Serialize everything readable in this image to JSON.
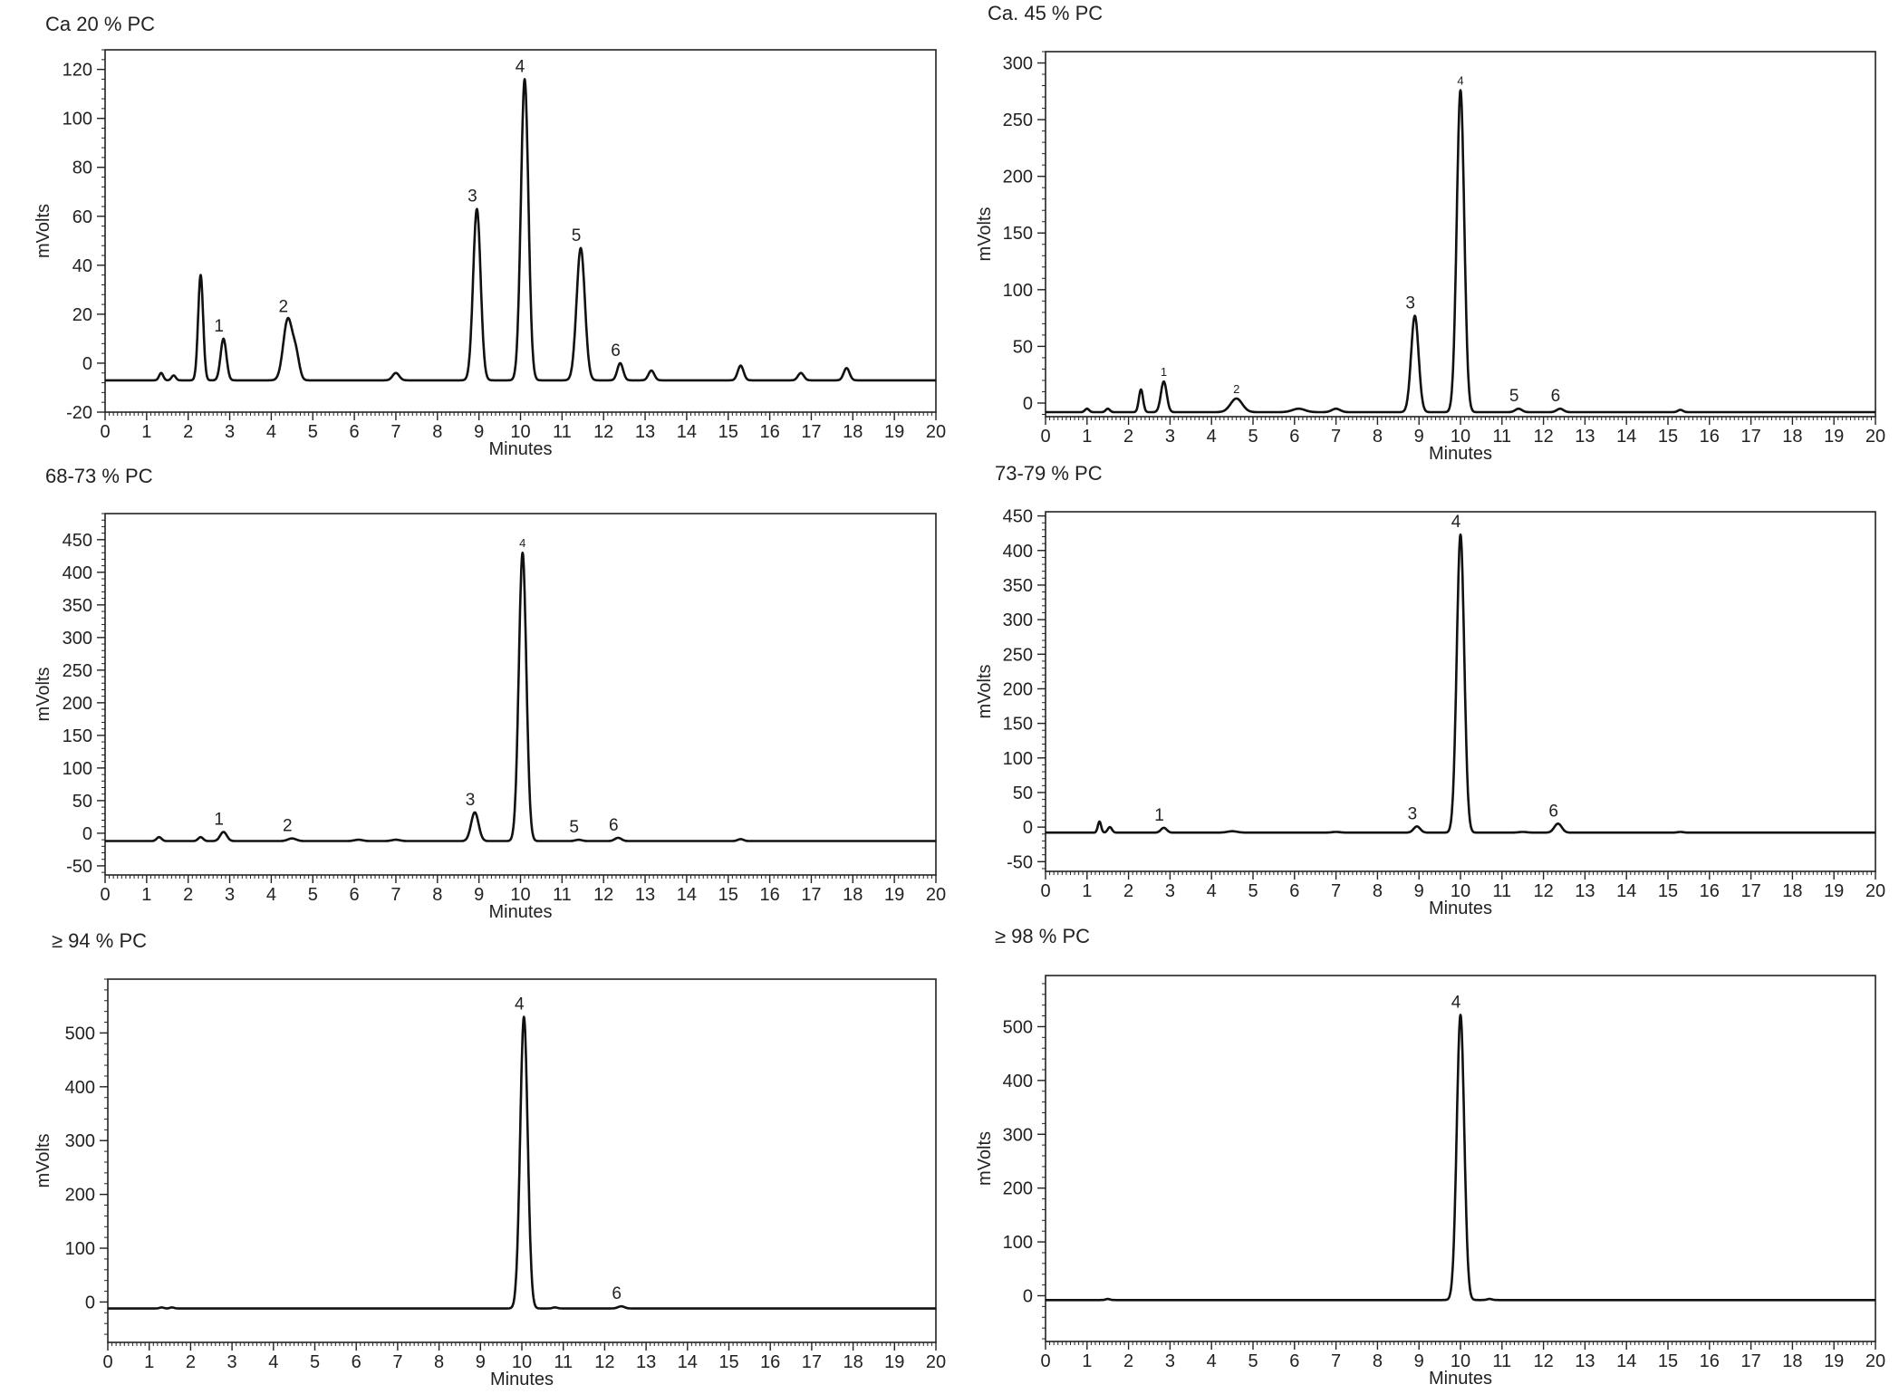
{
  "chart_data": [
    {
      "type": "line",
      "title": "Ca 20 % PC",
      "xlabel": "Minutes",
      "ylabel": "mVolts",
      "xlim": [
        0,
        20
      ],
      "ylim": [
        -20,
        128
      ],
      "baseline": -7,
      "xticks": [
        0,
        1,
        2,
        3,
        4,
        5,
        6,
        7,
        8,
        9,
        10,
        11,
        12,
        13,
        14,
        15,
        16,
        17,
        18,
        19,
        20
      ],
      "yticks": [
        -20,
        0,
        20,
        40,
        60,
        80,
        100,
        120
      ],
      "peaks": [
        {
          "x": 1.35,
          "y": -4,
          "w": 0.05
        },
        {
          "x": 1.65,
          "y": -5,
          "w": 0.05
        },
        {
          "x": 2.3,
          "y": 36,
          "w": 0.06
        },
        {
          "x": 2.85,
          "y": 10,
          "w": 0.07,
          "label": "1"
        },
        {
          "x": 4.4,
          "y": 18,
          "w": 0.11,
          "label": "2"
        },
        {
          "x": 4.6,
          "y": 2,
          "w": 0.08
        },
        {
          "x": 7.0,
          "y": -4,
          "w": 0.08
        },
        {
          "x": 8.95,
          "y": 63,
          "w": 0.09,
          "label": "3"
        },
        {
          "x": 10.1,
          "y": 116,
          "w": 0.09,
          "label": "4"
        },
        {
          "x": 11.45,
          "y": 47,
          "w": 0.1,
          "label": "5"
        },
        {
          "x": 12.4,
          "y": 0,
          "w": 0.07,
          "label": "6"
        },
        {
          "x": 13.15,
          "y": -3,
          "w": 0.07
        },
        {
          "x": 15.3,
          "y": -1,
          "w": 0.07
        },
        {
          "x": 16.75,
          "y": -4,
          "w": 0.07
        },
        {
          "x": 17.85,
          "y": -2,
          "w": 0.07
        }
      ]
    },
    {
      "type": "line",
      "title": "Ca. 45 % PC",
      "xlabel": "Minutes",
      "ylabel": "mVolts",
      "xlim": [
        0,
        20
      ],
      "ylim": [
        -12,
        310
      ],
      "baseline": -8,
      "xticks": [
        0,
        1,
        2,
        3,
        4,
        5,
        6,
        7,
        8,
        9,
        10,
        11,
        12,
        13,
        14,
        15,
        16,
        17,
        18,
        19,
        20
      ],
      "yticks": [
        0,
        50,
        100,
        150,
        200,
        250,
        300
      ],
      "peaks": [
        {
          "x": 1.0,
          "y": -5,
          "w": 0.05
        },
        {
          "x": 1.5,
          "y": -5,
          "w": 0.05
        },
        {
          "x": 2.3,
          "y": 12,
          "w": 0.05
        },
        {
          "x": 2.85,
          "y": 19,
          "w": 0.07,
          "label": "1"
        },
        {
          "x": 4.6,
          "y": 4,
          "w": 0.14,
          "label": "2"
        },
        {
          "x": 6.1,
          "y": -5,
          "w": 0.15
        },
        {
          "x": 7.0,
          "y": -5,
          "w": 0.1
        },
        {
          "x": 8.9,
          "y": 77,
          "w": 0.09,
          "label": "3"
        },
        {
          "x": 10.0,
          "y": 276,
          "w": 0.09,
          "label": "4"
        },
        {
          "x": 11.4,
          "y": -5,
          "w": 0.08,
          "label": "5"
        },
        {
          "x": 12.4,
          "y": -5,
          "w": 0.08,
          "label": "6"
        },
        {
          "x": 15.3,
          "y": -6,
          "w": 0.06
        }
      ]
    },
    {
      "type": "line",
      "title": "68-73 % PC",
      "xlabel": "Minutes",
      "ylabel": "mVolts",
      "xlim": [
        0,
        20
      ],
      "ylim": [
        -64,
        490
      ],
      "baseline": -12,
      "xticks": [
        0,
        1,
        2,
        3,
        4,
        5,
        6,
        7,
        8,
        9,
        10,
        11,
        12,
        13,
        14,
        15,
        16,
        17,
        18,
        19,
        20
      ],
      "yticks": [
        -50,
        0,
        50,
        100,
        150,
        200,
        250,
        300,
        350,
        400,
        450
      ],
      "peaks": [
        {
          "x": 1.3,
          "y": -6,
          "w": 0.06
        },
        {
          "x": 2.3,
          "y": -6,
          "w": 0.06
        },
        {
          "x": 2.85,
          "y": 2,
          "w": 0.08,
          "label": "1"
        },
        {
          "x": 4.5,
          "y": -8,
          "w": 0.1,
          "label": "2"
        },
        {
          "x": 6.1,
          "y": -10,
          "w": 0.1
        },
        {
          "x": 7.0,
          "y": -10,
          "w": 0.1
        },
        {
          "x": 8.9,
          "y": 32,
          "w": 0.09,
          "label": "3"
        },
        {
          "x": 10.05,
          "y": 430,
          "w": 0.09,
          "label": "4"
        },
        {
          "x": 11.4,
          "y": -10,
          "w": 0.08,
          "label": "5"
        },
        {
          "x": 12.35,
          "y": -7,
          "w": 0.08,
          "label": "6"
        },
        {
          "x": 15.3,
          "y": -9,
          "w": 0.07
        }
      ]
    },
    {
      "type": "line",
      "title": "73-79 % PC",
      "xlabel": "Minutes",
      "ylabel": "mVolts",
      "xlim": [
        0,
        20
      ],
      "ylim": [
        -64,
        456
      ],
      "baseline": -8,
      "xticks": [
        0,
        1,
        2,
        3,
        4,
        5,
        6,
        7,
        8,
        9,
        10,
        11,
        12,
        13,
        14,
        15,
        16,
        17,
        18,
        19,
        20
      ],
      "yticks": [
        -50,
        0,
        50,
        100,
        150,
        200,
        250,
        300,
        350,
        400,
        450
      ],
      "peaks": [
        {
          "x": 1.3,
          "y": 8,
          "w": 0.04
        },
        {
          "x": 1.55,
          "y": 0,
          "w": 0.05
        },
        {
          "x": 2.85,
          "y": -1,
          "w": 0.07,
          "label": "1"
        },
        {
          "x": 4.5,
          "y": -6,
          "w": 0.12
        },
        {
          "x": 7.0,
          "y": -7,
          "w": 0.1
        },
        {
          "x": 8.95,
          "y": 1,
          "w": 0.08,
          "label": "3"
        },
        {
          "x": 10.0,
          "y": 423,
          "w": 0.09,
          "label": "4"
        },
        {
          "x": 11.5,
          "y": -7,
          "w": 0.1
        },
        {
          "x": 12.35,
          "y": 5,
          "w": 0.09,
          "label": "6"
        },
        {
          "x": 15.3,
          "y": -7,
          "w": 0.07
        }
      ]
    },
    {
      "type": "line",
      "title": "≥ 94 % PC",
      "xlabel": "Minutes",
      "ylabel": "mVolts",
      "xlim": [
        0,
        20
      ],
      "ylim": [
        -75,
        600
      ],
      "baseline": -12,
      "xticks": [
        0,
        1,
        2,
        3,
        4,
        5,
        6,
        7,
        8,
        9,
        10,
        11,
        12,
        13,
        14,
        15,
        16,
        17,
        18,
        19,
        20
      ],
      "yticks": [
        0,
        100,
        200,
        300,
        400,
        500
      ],
      "peaks": [
        {
          "x": 1.3,
          "y": -10,
          "w": 0.05
        },
        {
          "x": 1.55,
          "y": -10,
          "w": 0.05
        },
        {
          "x": 10.05,
          "y": 530,
          "w": 0.09,
          "label": "4"
        },
        {
          "x": 10.8,
          "y": -10,
          "w": 0.06
        },
        {
          "x": 12.4,
          "y": -8,
          "w": 0.08,
          "label": "6"
        }
      ]
    },
    {
      "type": "line",
      "title": "≥ 98 % PC",
      "xlabel": "Minutes",
      "ylabel": "mVolts",
      "xlim": [
        0,
        20
      ],
      "ylim": [
        -85,
        595
      ],
      "baseline": -8,
      "xticks": [
        0,
        1,
        2,
        3,
        4,
        5,
        6,
        7,
        8,
        9,
        10,
        11,
        12,
        13,
        14,
        15,
        16,
        17,
        18,
        19,
        20
      ],
      "yticks": [
        0,
        100,
        200,
        300,
        400,
        500
      ],
      "peaks": [
        {
          "x": 1.5,
          "y": -6,
          "w": 0.05
        },
        {
          "x": 10.0,
          "y": 522,
          "w": 0.09,
          "label": "4"
        },
        {
          "x": 10.7,
          "y": -6,
          "w": 0.06
        }
      ]
    }
  ]
}
